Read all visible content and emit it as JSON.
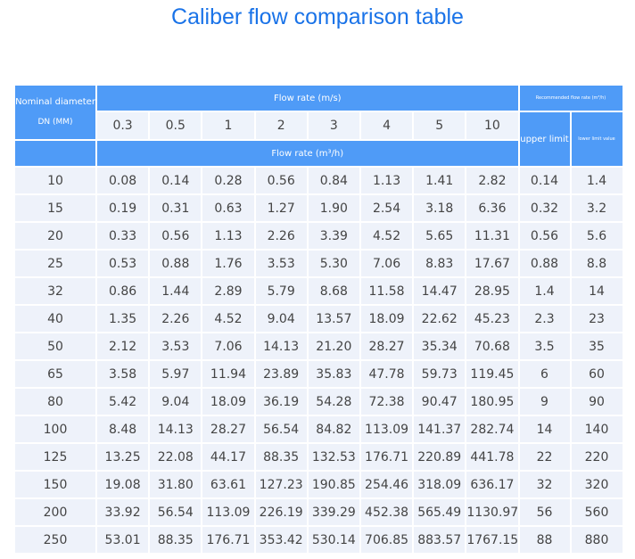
{
  "title": "Caliber flow comparison table",
  "header": {
    "nominal": "Nominal diameter",
    "dn": "DN (MM)",
    "flow_ms": "Flow rate (m/s)",
    "flow_m3h": "Flow rate (m³/h)",
    "recommended": "Recommended flow rate (m³/h)",
    "upper": "upper limit",
    "lower": "lower limit value",
    "speeds": [
      "0.3",
      "0.5",
      "1",
      "2",
      "3",
      "4",
      "5",
      "10"
    ]
  },
  "rows": [
    [
      "10",
      "0.08",
      "0.14",
      "0.28",
      "0.56",
      "0.84",
      "1.13",
      "1.41",
      "2.82",
      "0.14",
      "1.4"
    ],
    [
      "15",
      "0.19",
      "0.31",
      "0.63",
      "1.27",
      "1.90",
      "2.54",
      "3.18",
      "6.36",
      "0.32",
      "3.2"
    ],
    [
      "20",
      "0.33",
      "0.56",
      "1.13",
      "2.26",
      "3.39",
      "4.52",
      "5.65",
      "11.31",
      "0.56",
      "5.6"
    ],
    [
      "25",
      "0.53",
      "0.88",
      "1.76",
      "3.53",
      "5.30",
      "7.06",
      "8.83",
      "17.67",
      "0.88",
      "8.8"
    ],
    [
      "32",
      "0.86",
      "1.44",
      "2.89",
      "5.79",
      "8.68",
      "11.58",
      "14.47",
      "28.95",
      "1.4",
      "14"
    ],
    [
      "40",
      "1.35",
      "2.26",
      "4.52",
      "9.04",
      "13.57",
      "18.09",
      "22.62",
      "45.23",
      "2.3",
      "23"
    ],
    [
      "50",
      "2.12",
      "3.53",
      "7.06",
      "14.13",
      "21.20",
      "28.27",
      "35.34",
      "70.68",
      "3.5",
      "35"
    ],
    [
      "65",
      "3.58",
      "5.97",
      "11.94",
      "23.89",
      "35.83",
      "47.78",
      "59.73",
      "119.45",
      "6",
      "60"
    ],
    [
      "80",
      "5.42",
      "9.04",
      "18.09",
      "36.19",
      "54.28",
      "72.38",
      "90.47",
      "180.95",
      "9",
      "90"
    ],
    [
      "100",
      "8.48",
      "14.13",
      "28.27",
      "56.54",
      "84.82",
      "113.09",
      "141.37",
      "282.74",
      "14",
      "140"
    ],
    [
      "125",
      "13.25",
      "22.08",
      "44.17",
      "88.35",
      "132.53",
      "176.71",
      "220.89",
      "441.78",
      "22",
      "220"
    ],
    [
      "150",
      "19.08",
      "31.80",
      "63.61",
      "127.23",
      "190.85",
      "254.46",
      "318.09",
      "636.17",
      "32",
      "320"
    ],
    [
      "200",
      "33.92",
      "56.54",
      "113.09",
      "226.19",
      "339.29",
      "452.38",
      "565.49",
      "1130.97",
      "56",
      "560"
    ],
    [
      "250",
      "53.01",
      "88.35",
      "176.71",
      "353.42",
      "530.14",
      "706.85",
      "883.57",
      "1767.15",
      "88",
      "880"
    ]
  ]
}
